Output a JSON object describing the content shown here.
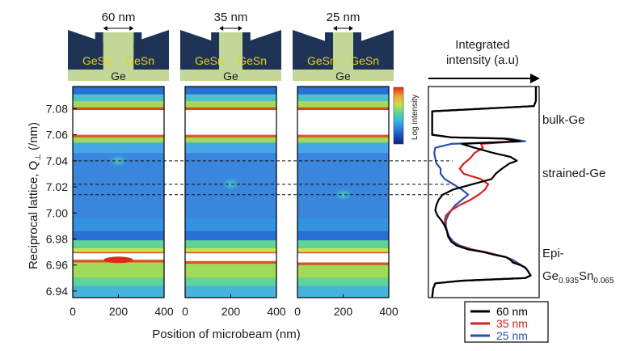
{
  "chart_data": {
    "type": "heatmap",
    "ylabel_main": "Reciprocal lattice, Q",
    "ylabel_sub": "⊥",
    "ylabel_unit": " (/nm)",
    "xlabel": "Position of microbeam (nm)",
    "xlim": [
      0,
      400
    ],
    "ylim": [
      6.935,
      7.097
    ],
    "x_ticks": [
      "0",
      "200",
      "400"
    ],
    "y_ticks": [
      {
        "value": 7.08,
        "label": "7.08"
      },
      {
        "value": 7.06,
        "label": "7.06"
      },
      {
        "value": 7.04,
        "label": "7.04"
      },
      {
        "value": 7.02,
        "label": "7.02"
      },
      {
        "value": 7.0,
        "label": "7.00"
      },
      {
        "value": 6.98,
        "label": "6.98"
      },
      {
        "value": 6.96,
        "label": "6.96"
      },
      {
        "value": 6.94,
        "label": "6.94"
      }
    ],
    "panels": [
      {
        "width_label": "60 nm",
        "gesn_left": "GeSn",
        "gesn_right": "GeSn",
        "substrate": "Ge",
        "strained_peak_q": 7.04,
        "epi_peak_q": 6.964,
        "hotspot_q": 7.04
      },
      {
        "width_label": "35 nm",
        "gesn_left": "GeSn",
        "gesn_right": "GeSn",
        "substrate": "Ge",
        "strained_peak_q": 7.022,
        "epi_peak_q": 6.963,
        "hotspot_q": 7.022
      },
      {
        "width_label": "25 nm",
        "gesn_left": "GeSn",
        "gesn_right": "GeSn",
        "substrate": "Ge",
        "strained_peak_q": 7.014,
        "epi_peak_q": 6.962,
        "hotspot_q": 7.014
      }
    ],
    "colorbar_label": "Log intensity",
    "dashed_lines_q": [
      7.04,
      7.022,
      7.014
    ],
    "profile": {
      "title_line1": "Integrated",
      "title_line2": "intensity (a.u)",
      "series": [
        {
          "name": "60 nm",
          "color": "#000000",
          "points": [
            [
              6.935,
              0.02
            ],
            [
              6.942,
              0.03
            ],
            [
              6.946,
              0.05
            ],
            [
              6.948,
              0.3
            ],
            [
              6.95,
              0.9
            ],
            [
              6.952,
              0.95
            ],
            [
              6.956,
              0.92
            ],
            [
              6.958,
              0.9
            ],
            [
              6.96,
              0.85
            ],
            [
              6.962,
              0.78
            ],
            [
              6.964,
              0.76
            ],
            [
              6.966,
              0.72
            ],
            [
              6.968,
              0.6
            ],
            [
              6.97,
              0.5
            ],
            [
              6.972,
              0.36
            ],
            [
              6.975,
              0.25
            ],
            [
              6.978,
              0.2
            ],
            [
              6.982,
              0.17
            ],
            [
              6.986,
              0.16
            ],
            [
              6.99,
              0.14
            ],
            [
              6.994,
              0.11
            ],
            [
              6.998,
              0.07
            ],
            [
              7.002,
              0.05
            ],
            [
              7.006,
              0.06
            ],
            [
              7.01,
              0.08
            ],
            [
              7.014,
              0.12
            ],
            [
              7.018,
              0.22
            ],
            [
              7.022,
              0.4
            ],
            [
              7.026,
              0.58
            ],
            [
              7.03,
              0.62
            ],
            [
              7.034,
              0.68
            ],
            [
              7.038,
              0.75
            ],
            [
              7.04,
              0.82
            ],
            [
              7.043,
              0.76
            ],
            [
              7.046,
              0.6
            ],
            [
              7.05,
              0.42
            ],
            [
              7.053,
              0.3
            ],
            [
              7.055,
              0.85
            ],
            [
              7.057,
              0.7
            ],
            [
              7.058,
              0.2
            ],
            [
              7.06,
              0.02
            ],
            [
              7.078,
              0.02
            ],
            [
              7.08,
              0.5
            ],
            [
              7.082,
              0.98
            ],
            [
              7.086,
              1.0
            ],
            [
              7.09,
              1.0
            ],
            [
              7.097,
              1.0
            ]
          ]
        },
        {
          "name": "35 nm",
          "color": "#d42020",
          "points": [
            [
              6.935,
              0.02
            ],
            [
              6.942,
              0.03
            ],
            [
              6.946,
              0.05
            ],
            [
              6.948,
              0.3
            ],
            [
              6.95,
              0.9
            ],
            [
              6.952,
              0.95
            ],
            [
              6.956,
              0.92
            ],
            [
              6.958,
              0.9
            ],
            [
              6.96,
              0.85
            ],
            [
              6.962,
              0.8
            ],
            [
              6.964,
              0.76
            ],
            [
              6.966,
              0.72
            ],
            [
              6.968,
              0.62
            ],
            [
              6.97,
              0.52
            ],
            [
              6.972,
              0.38
            ],
            [
              6.975,
              0.26
            ],
            [
              6.978,
              0.2
            ],
            [
              6.982,
              0.17
            ],
            [
              6.986,
              0.16
            ],
            [
              6.99,
              0.14
            ],
            [
              6.994,
              0.14
            ],
            [
              6.998,
              0.15
            ],
            [
              7.002,
              0.2
            ],
            [
              7.006,
              0.28
            ],
            [
              7.01,
              0.38
            ],
            [
              7.014,
              0.46
            ],
            [
              7.018,
              0.52
            ],
            [
              7.022,
              0.55
            ],
            [
              7.026,
              0.48
            ],
            [
              7.03,
              0.32
            ],
            [
              7.034,
              0.28
            ],
            [
              7.038,
              0.32
            ],
            [
              7.042,
              0.38
            ],
            [
              7.046,
              0.42
            ],
            [
              7.05,
              0.5
            ],
            [
              7.053,
              0.48
            ],
            [
              7.055,
              0.85
            ],
            [
              7.057,
              0.7
            ],
            [
              7.058,
              0.2
            ],
            [
              7.06,
              0.02
            ],
            [
              7.078,
              0.02
            ],
            [
              7.08,
              0.5
            ],
            [
              7.082,
              0.98
            ],
            [
              7.086,
              1.0
            ],
            [
              7.09,
              1.0
            ],
            [
              7.097,
              1.0
            ]
          ]
        },
        {
          "name": "25 nm",
          "color": "#2a4fb0",
          "points": [
            [
              6.935,
              0.02
            ],
            [
              6.942,
              0.03
            ],
            [
              6.946,
              0.05
            ],
            [
              6.948,
              0.3
            ],
            [
              6.95,
              0.9
            ],
            [
              6.952,
              0.95
            ],
            [
              6.956,
              0.92
            ],
            [
              6.958,
              0.9
            ],
            [
              6.96,
              0.86
            ],
            [
              6.962,
              0.82
            ],
            [
              6.964,
              0.78
            ],
            [
              6.966,
              0.72
            ],
            [
              6.968,
              0.62
            ],
            [
              6.97,
              0.52
            ],
            [
              6.972,
              0.4
            ],
            [
              6.975,
              0.28
            ],
            [
              6.978,
              0.22
            ],
            [
              6.982,
              0.18
            ],
            [
              6.986,
              0.16
            ],
            [
              6.99,
              0.15
            ],
            [
              6.994,
              0.15
            ],
            [
              6.998,
              0.17
            ],
            [
              7.002,
              0.2
            ],
            [
              7.006,
              0.24
            ],
            [
              7.01,
              0.3
            ],
            [
              7.014,
              0.36
            ],
            [
              7.018,
              0.3
            ],
            [
              7.022,
              0.22
            ],
            [
              7.026,
              0.14
            ],
            [
              7.03,
              0.1
            ],
            [
              7.034,
              0.1
            ],
            [
              7.038,
              0.06
            ],
            [
              7.042,
              0.05
            ],
            [
              7.046,
              0.04
            ],
            [
              7.05,
              0.05
            ],
            [
              7.053,
              0.2
            ],
            [
              7.055,
              0.9
            ],
            [
              7.057,
              0.75
            ],
            [
              7.058,
              0.2
            ],
            [
              7.06,
              0.02
            ],
            [
              7.078,
              0.02
            ],
            [
              7.08,
              0.5
            ],
            [
              7.082,
              0.98
            ],
            [
              7.086,
              1.0
            ],
            [
              7.09,
              1.0
            ],
            [
              7.097,
              1.0
            ]
          ]
        }
      ]
    },
    "region_labels": {
      "bulk": "bulk-Ge",
      "strained": "strained-Ge",
      "epi_line1": "Epi-",
      "epi_base": "Ge",
      "epi_sub1": "0.935",
      "epi_mid": "Sn",
      "epi_sub2": "0.065"
    },
    "legend_placement": "bottom-right",
    "colors": {
      "bar_fill": "#c3d896",
      "wedge_fill": "#1e3356",
      "gesn_text": "#e8d020",
      "white_band": "#ffffff"
    }
  }
}
